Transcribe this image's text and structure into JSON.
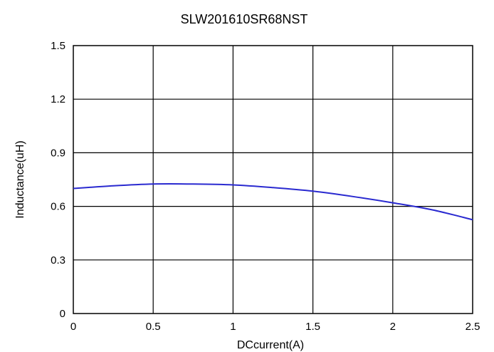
{
  "chart_data": {
    "type": "line",
    "title": "SLW201610SR68NST",
    "xlabel": "DCcurrent(A)",
    "ylabel": "Inductance(uH)",
    "xlim": [
      0,
      2.5
    ],
    "ylim": [
      0,
      1.5
    ],
    "x_ticks": [
      "0",
      "0.5",
      "1",
      "1.5",
      "2",
      "2.5"
    ],
    "y_ticks": [
      "0",
      "0.3",
      "0.6",
      "0.9",
      "1.2",
      "1.5"
    ],
    "grid": true,
    "series": [
      {
        "color": "#2a2ad0",
        "x": [
          0,
          0.25,
          0.5,
          0.75,
          1.0,
          1.25,
          1.5,
          1.75,
          2.0,
          2.25,
          2.5
        ],
        "y": [
          0.7,
          0.715,
          0.725,
          0.725,
          0.72,
          0.705,
          0.685,
          0.655,
          0.62,
          0.58,
          0.525
        ]
      }
    ]
  }
}
